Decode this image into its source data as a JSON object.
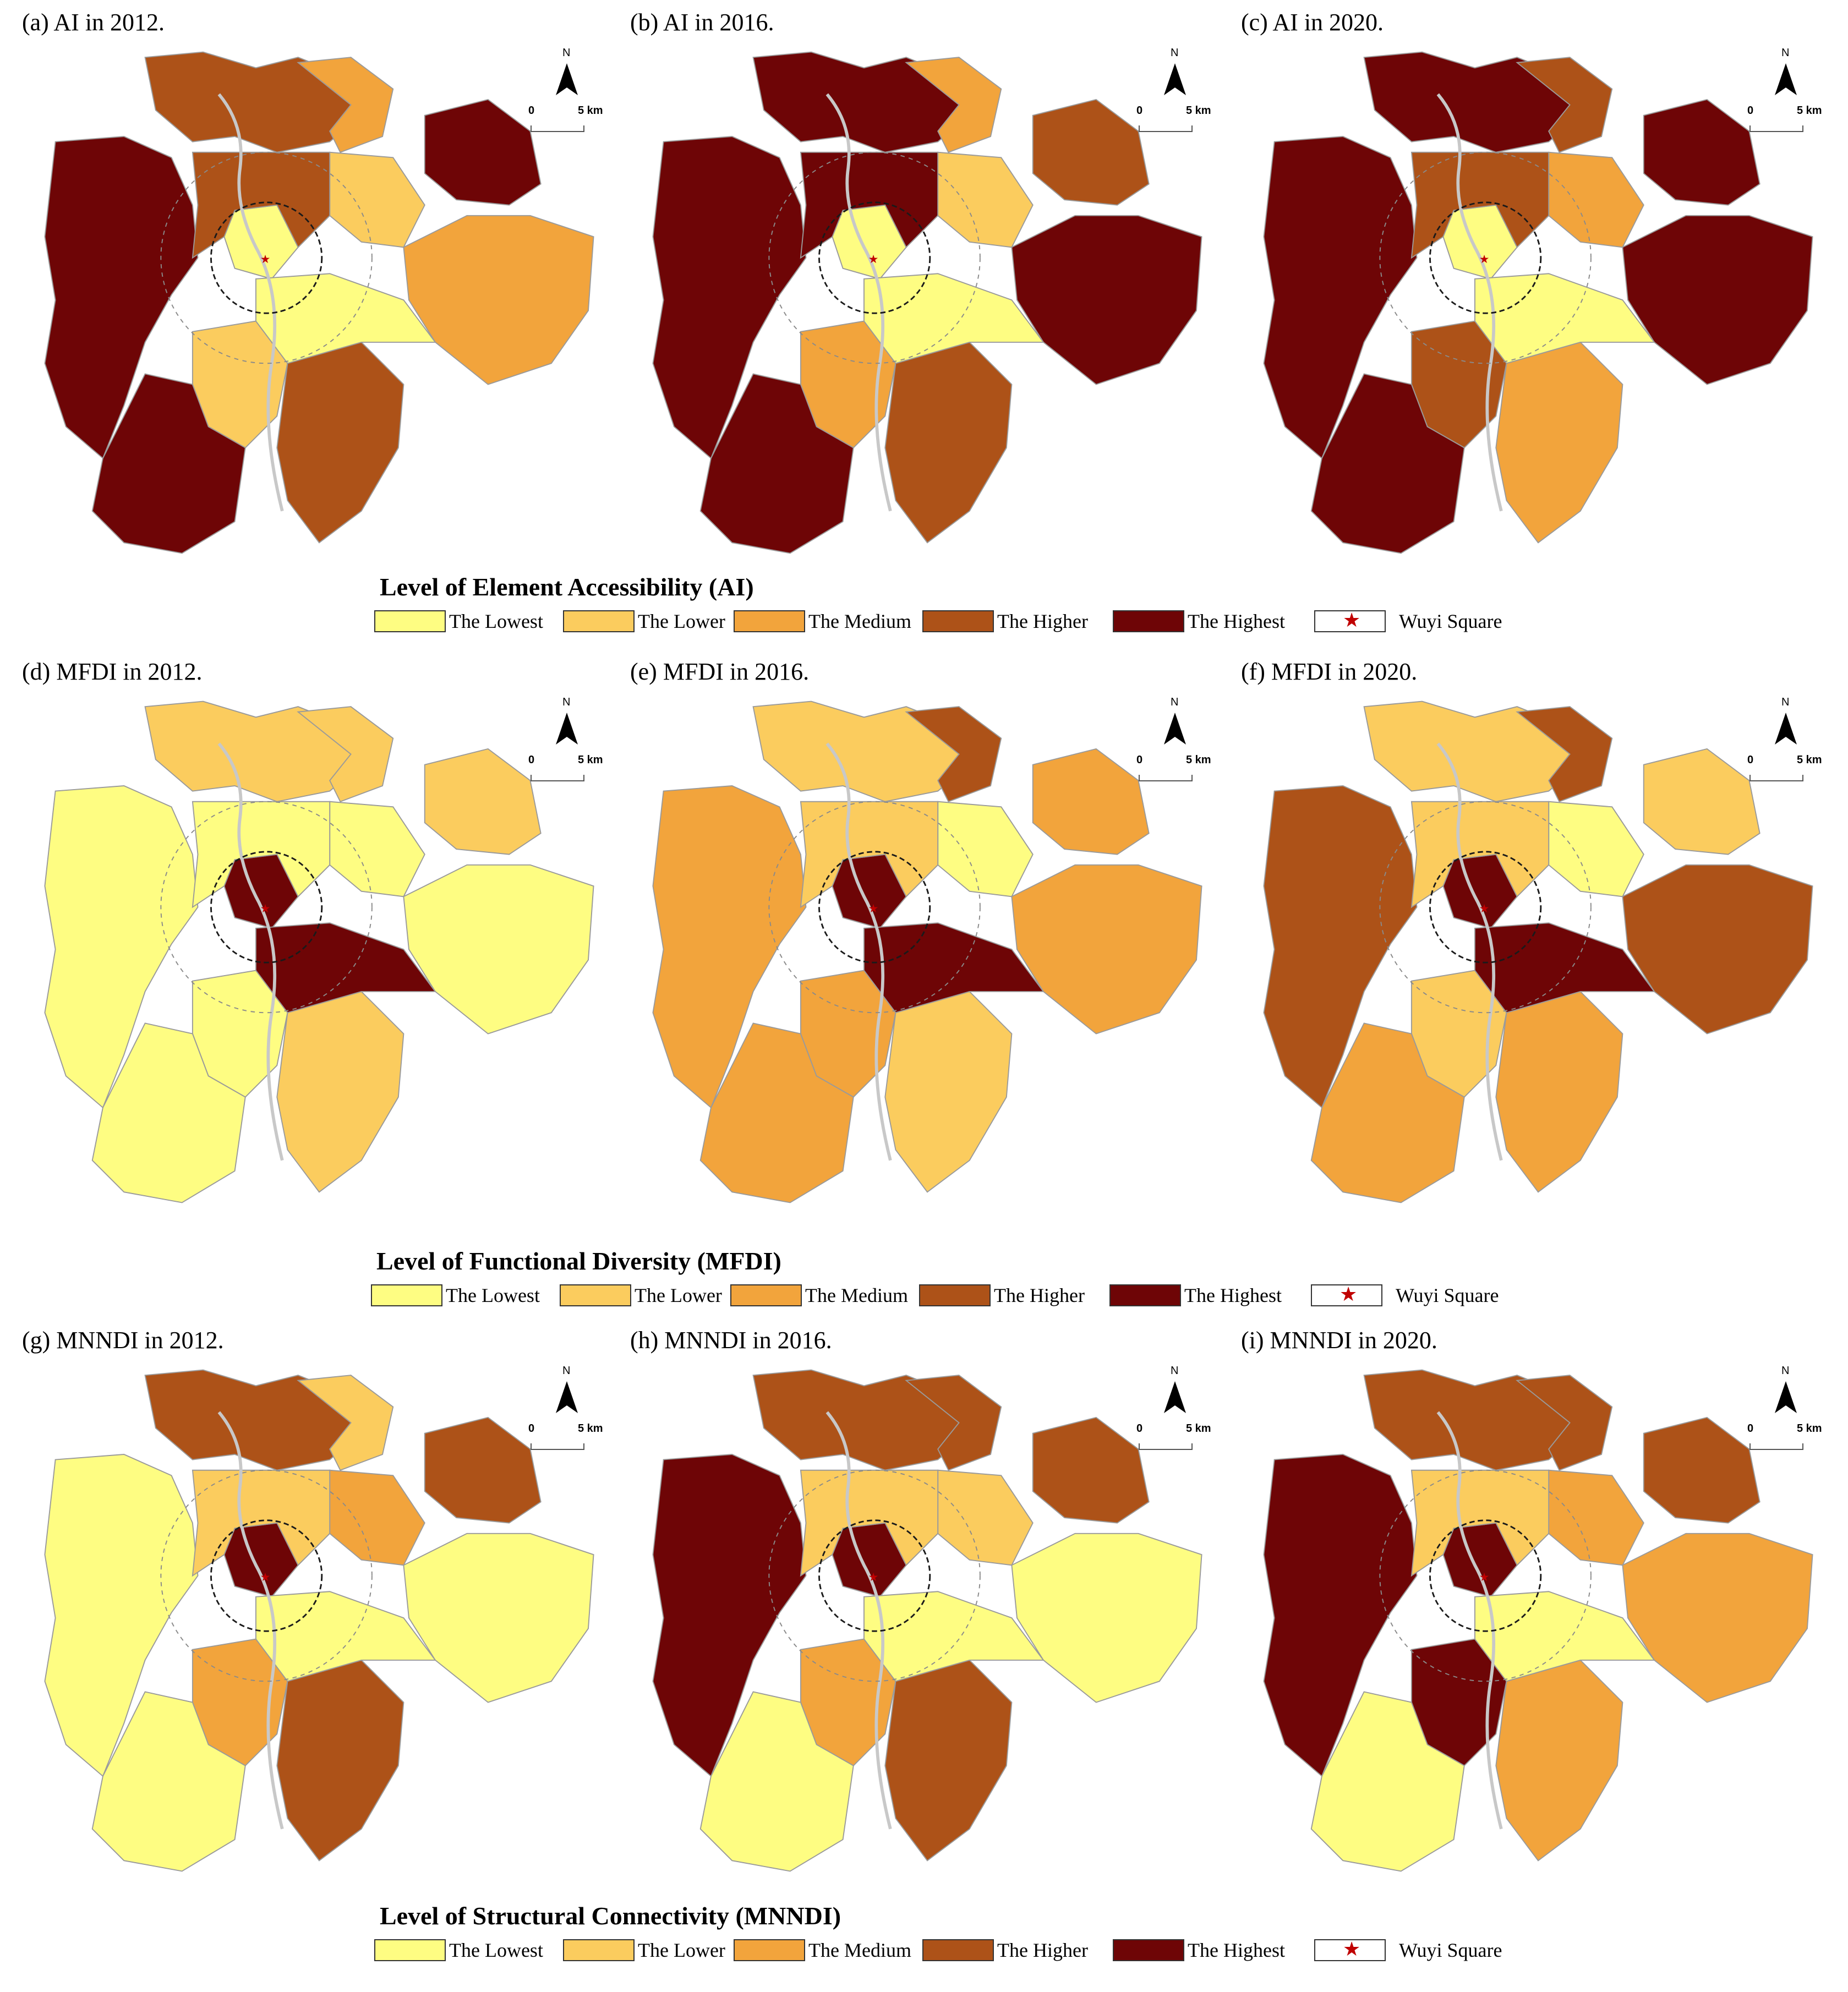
{
  "palette": {
    "lowest": "#fefd82",
    "lower": "#fbcc5e",
    "medium": "#f2a43c",
    "higher": "#ad5218",
    "highest": "#6e0506",
    "star": "#c00000"
  },
  "north_label": "N",
  "scale": {
    "start": "0",
    "end": "5 km"
  },
  "panels": [
    {
      "title": "(a) AI in 2012.",
      "levels": [
        "highest",
        "higher",
        "medium",
        "lower",
        "lowest",
        "higher",
        "highest",
        "medium",
        "lower",
        "higher",
        "lowest",
        "highest"
      ]
    },
    {
      "title": "(b) AI in 2016.",
      "levels": [
        "highest",
        "highest",
        "medium",
        "lower",
        "lowest",
        "highest",
        "higher",
        "highest",
        "medium",
        "higher",
        "lowest",
        "highest"
      ]
    },
    {
      "title": "(c) AI in 2020.",
      "levels": [
        "highest",
        "highest",
        "higher",
        "medium",
        "lowest",
        "higher",
        "highest",
        "highest",
        "higher",
        "medium",
        "lowest",
        "highest"
      ]
    },
    {
      "title": "(d) MFDI in 2012.",
      "levels": [
        "lowest",
        "lower",
        "lower",
        "lowest",
        "highest",
        "lowest",
        "lower",
        "lowest",
        "lowest",
        "lower",
        "highest",
        "lowest"
      ]
    },
    {
      "title": "(e) MFDI in 2016.",
      "levels": [
        "medium",
        "lower",
        "higher",
        "lowest",
        "highest",
        "lower",
        "medium",
        "medium",
        "medium",
        "lower",
        "highest",
        "medium"
      ]
    },
    {
      "title": "(f) MFDI in 2020.",
      "levels": [
        "higher",
        "lower",
        "higher",
        "lowest",
        "highest",
        "lower",
        "lower",
        "higher",
        "lower",
        "medium",
        "highest",
        "medium"
      ]
    },
    {
      "title": "(g) MNNDI in 2012.",
      "levels": [
        "lowest",
        "higher",
        "lower",
        "medium",
        "highest",
        "lower",
        "higher",
        "lowest",
        "medium",
        "higher",
        "lowest",
        "lowest"
      ]
    },
    {
      "title": "(h) MNNDI in 2016.",
      "levels": [
        "highest",
        "higher",
        "higher",
        "lower",
        "highest",
        "lower",
        "higher",
        "lowest",
        "medium",
        "higher",
        "lowest",
        "lowest"
      ]
    },
    {
      "title": "(i) MNNDI in 2020.",
      "levels": [
        "highest",
        "higher",
        "higher",
        "medium",
        "highest",
        "lower",
        "higher",
        "medium",
        "highest",
        "medium",
        "lowest",
        "lowest"
      ]
    }
  ],
  "legends": [
    {
      "title": "Level of Element Accessibility (AI)",
      "items": [
        "The Lowest",
        "The Lower",
        "The Medium",
        "The Higher",
        "The Highest"
      ],
      "star_label": "Wuyi Square"
    },
    {
      "title": "Level of Functional Diversity (MFDI)",
      "items": [
        "The Lowest",
        "The Lower",
        "The Medium",
        "The Higher",
        "The Highest"
      ],
      "star_label": "Wuyi Square"
    },
    {
      "title": "Level of Structural Connectivity (MNNDI)",
      "items": [
        "The Lowest",
        "The Lower",
        "The Medium",
        "The Higher",
        "The Highest"
      ],
      "star_label": "Wuyi Square"
    }
  ]
}
